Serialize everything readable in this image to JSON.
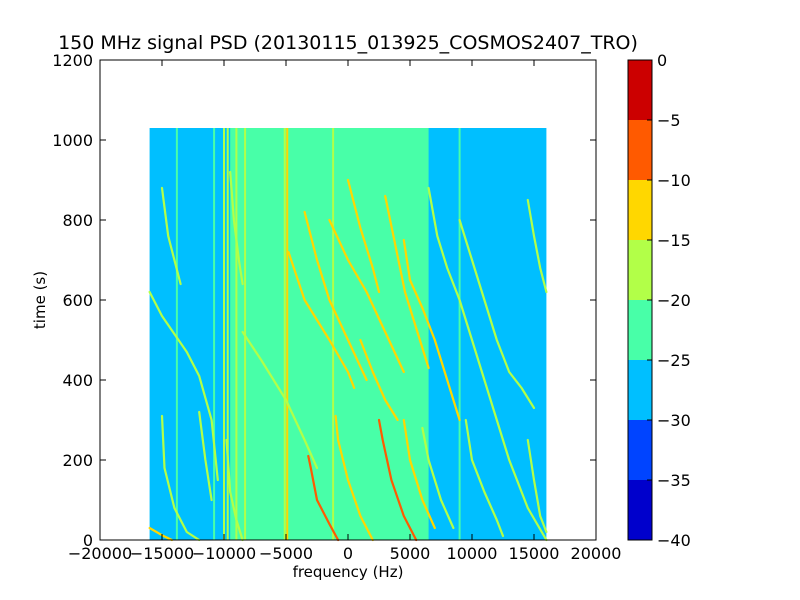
{
  "chart_data": {
    "type": "heatmap",
    "title": "150 MHz signal PSD (20130115_013925_COSMOS2407_TRO)",
    "xlabel": "frequency (Hz)",
    "ylabel": "time (s)",
    "xlim": [
      -20000,
      20000
    ],
    "ylim": [
      0,
      1200
    ],
    "x_ticks": [
      -20000,
      -15000,
      -10000,
      -5000,
      0,
      5000,
      10000,
      15000,
      20000
    ],
    "x_tick_labels": [
      "−20000",
      "−15000",
      "−10000",
      "−5000",
      "0",
      "5000",
      "10000",
      "15000",
      "20000"
    ],
    "y_ticks": [
      0,
      200,
      400,
      600,
      800,
      1000,
      1200
    ],
    "y_tick_labels": [
      "0",
      "200",
      "400",
      "600",
      "800",
      "1000",
      "1200"
    ],
    "data_extent": {
      "x": [
        -16000,
        16000
      ],
      "y": [
        0,
        1030
      ]
    },
    "background_level": -27.5,
    "noise_band": {
      "x": [
        -9500,
        6500
      ],
      "level": -22.5
    },
    "colorbar": {
      "levels": [
        -40,
        -35,
        -30,
        -25,
        -20,
        -15,
        -10,
        -5,
        0
      ],
      "tick_labels": [
        "−40",
        "−35",
        "−30",
        "−25",
        "−20",
        "−15",
        "−10",
        "−5",
        "0"
      ],
      "colors": [
        "#0000cc",
        "#0044ff",
        "#00bfff",
        "#48ffa8",
        "#b2ff48",
        "#ffd700",
        "#ff5a00",
        "#cc0000"
      ]
    },
    "vertical_lines": [
      {
        "x": -13800,
        "level": -22.5
      },
      {
        "x": -10800,
        "level": -22.5
      },
      {
        "x": -10000,
        "level": -17.5
      },
      {
        "x": -9700,
        "level": -17.5
      },
      {
        "x": -9000,
        "level": -17.5
      },
      {
        "x": -8300,
        "level": -17.5
      },
      {
        "x": -4900,
        "level": -12.5
      },
      {
        "x": -5100,
        "level": -17.5
      },
      {
        "x": -1200,
        "level": -17.5
      },
      {
        "x": 9000,
        "level": -22.5
      }
    ],
    "tracks": [
      {
        "name": "",
        "level": -12.5,
        "points": [
          [
            -16000,
            30
          ],
          [
            -15000,
            12
          ],
          [
            -14200,
            0
          ]
        ]
      },
      {
        "name": "",
        "level": -17.5,
        "points": [
          [
            -16000,
            620
          ],
          [
            -15000,
            560
          ],
          [
            -13000,
            470
          ],
          [
            -12000,
            410
          ],
          [
            -11000,
            300
          ],
          [
            -10500,
            150
          ]
        ]
      },
      {
        "name": "",
        "level": -17.5,
        "points": [
          [
            -15000,
            880
          ],
          [
            -14500,
            760
          ],
          [
            -14000,
            700
          ],
          [
            -13500,
            640
          ]
        ]
      },
      {
        "name": "",
        "level": -17.5,
        "points": [
          [
            -15000,
            310
          ],
          [
            -14800,
            180
          ],
          [
            -14000,
            80
          ],
          [
            -13000,
            20
          ],
          [
            -12000,
            0
          ]
        ]
      },
      {
        "name": "",
        "level": -17.5,
        "points": [
          [
            -12000,
            320
          ],
          [
            -11500,
            200
          ],
          [
            -11000,
            100
          ]
        ]
      },
      {
        "name": "",
        "level": -17.5,
        "points": [
          [
            -9500,
            920
          ],
          [
            -9200,
            800
          ],
          [
            -8800,
            700
          ],
          [
            -8500,
            640
          ]
        ]
      },
      {
        "name": "",
        "level": -17.5,
        "points": [
          [
            -9800,
            250
          ],
          [
            -9500,
            120
          ],
          [
            -9000,
            50
          ],
          [
            -8500,
            0
          ]
        ]
      },
      {
        "name": "",
        "level": -17.5,
        "points": [
          [
            -8500,
            520
          ],
          [
            -7000,
            450
          ],
          [
            -5000,
            350
          ],
          [
            -3500,
            250
          ],
          [
            -2500,
            180
          ]
        ]
      },
      {
        "name": "",
        "level": -12.5,
        "points": [
          [
            -4800,
            720
          ],
          [
            -3500,
            600
          ],
          [
            -1500,
            500
          ],
          [
            0,
            420
          ],
          [
            500,
            380
          ]
        ]
      },
      {
        "name": "",
        "level": -12.5,
        "points": [
          [
            -3500,
            820
          ],
          [
            -2500,
            700
          ],
          [
            -1500,
            600
          ],
          [
            0,
            500
          ],
          [
            1500,
            400
          ]
        ]
      },
      {
        "name": "",
        "level": -7.5,
        "points": [
          [
            -3200,
            210
          ],
          [
            -3000,
            180
          ],
          [
            -2500,
            100
          ],
          [
            -1500,
            40
          ],
          [
            -800,
            0
          ]
        ]
      },
      {
        "name": "",
        "level": -12.5,
        "points": [
          [
            -1000,
            310
          ],
          [
            -800,
            250
          ],
          [
            0,
            150
          ],
          [
            1000,
            60
          ],
          [
            2000,
            0
          ]
        ]
      },
      {
        "name": "",
        "level": -12.5,
        "points": [
          [
            -1500,
            800
          ],
          [
            0,
            700
          ],
          [
            1500,
            620
          ],
          [
            3000,
            520
          ],
          [
            4500,
            420
          ]
        ]
      },
      {
        "name": "",
        "level": -12.5,
        "points": [
          [
            0,
            900
          ],
          [
            1000,
            780
          ],
          [
            2000,
            680
          ],
          [
            2500,
            620
          ]
        ]
      },
      {
        "name": "",
        "level": -12.5,
        "points": [
          [
            1000,
            500
          ],
          [
            2000,
            420
          ],
          [
            3000,
            350
          ],
          [
            4000,
            300
          ]
        ]
      },
      {
        "name": "",
        "level": -7.5,
        "points": [
          [
            2500,
            300
          ],
          [
            2800,
            250
          ],
          [
            3500,
            150
          ],
          [
            4500,
            60
          ],
          [
            5500,
            0
          ]
        ]
      },
      {
        "name": "",
        "level": -12.5,
        "points": [
          [
            3000,
            860
          ],
          [
            3800,
            740
          ],
          [
            4600,
            620
          ],
          [
            5600,
            520
          ],
          [
            6500,
            430
          ]
        ]
      },
      {
        "name": "",
        "level": -12.5,
        "points": [
          [
            4500,
            750
          ],
          [
            5000,
            650
          ],
          [
            6000,
            580
          ],
          [
            7000,
            500
          ],
          [
            8000,
            400
          ],
          [
            9000,
            300
          ]
        ]
      },
      {
        "name": "",
        "level": -12.5,
        "points": [
          [
            4500,
            300
          ],
          [
            5000,
            200
          ],
          [
            6000,
            100
          ],
          [
            7000,
            30
          ]
        ]
      },
      {
        "name": "",
        "level": -17.5,
        "points": [
          [
            6000,
            280
          ],
          [
            6500,
            200
          ],
          [
            7500,
            100
          ],
          [
            8500,
            30
          ]
        ]
      },
      {
        "name": "",
        "level": -17.5,
        "points": [
          [
            6500,
            880
          ],
          [
            7200,
            760
          ],
          [
            8000,
            680
          ],
          [
            9000,
            600
          ],
          [
            10000,
            500
          ],
          [
            11000,
            400
          ],
          [
            12000,
            300
          ],
          [
            13000,
            200
          ],
          [
            14500,
            80
          ],
          [
            16000,
            0
          ]
        ]
      },
      {
        "name": "",
        "level": -17.5,
        "points": [
          [
            9000,
            800
          ],
          [
            10000,
            700
          ],
          [
            11000,
            600
          ],
          [
            12000,
            500
          ],
          [
            13000,
            420
          ],
          [
            14000,
            380
          ],
          [
            15000,
            330
          ]
        ]
      },
      {
        "name": "",
        "level": -17.5,
        "points": [
          [
            9500,
            300
          ],
          [
            10000,
            200
          ],
          [
            11000,
            120
          ],
          [
            12000,
            50
          ],
          [
            12500,
            10
          ]
        ]
      },
      {
        "name": "",
        "level": -17.5,
        "points": [
          [
            14500,
            250
          ],
          [
            15000,
            150
          ],
          [
            15500,
            60
          ],
          [
            16000,
            20
          ]
        ]
      },
      {
        "name": "",
        "level": -17.5,
        "points": [
          [
            14500,
            850
          ],
          [
            15000,
            760
          ],
          [
            15500,
            680
          ],
          [
            16000,
            620
          ]
        ]
      }
    ]
  }
}
